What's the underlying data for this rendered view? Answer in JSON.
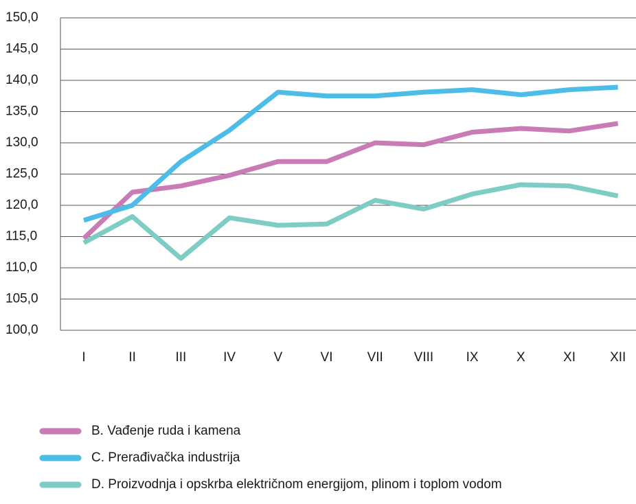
{
  "chart_data": {
    "type": "line",
    "categories": [
      "I",
      "II",
      "III",
      "IV",
      "V",
      "VI",
      "VII",
      "VIII",
      "IX",
      "X",
      "XI",
      "XII"
    ],
    "series": [
      {
        "name": "B. Vađenje ruda i kamena",
        "color": "#c97bb5",
        "values": [
          114.7,
          122.1,
          123.1,
          124.8,
          127.0,
          127.0,
          130.0,
          129.7,
          131.7,
          132.3,
          131.9,
          133.1
        ]
      },
      {
        "name": "C. Prerađivačka industrija",
        "color": "#4dbde8",
        "values": [
          117.6,
          120.0,
          127.0,
          132.0,
          138.1,
          137.5,
          137.5,
          138.1,
          138.5,
          137.7,
          138.5,
          138.9
        ]
      },
      {
        "name": "D. Proizvodnja i opskrba električnom energijom, plinom i toplom vodom",
        "color": "#7ecdc4",
        "values": [
          114.0,
          118.2,
          111.5,
          118.0,
          116.8,
          117.0,
          120.8,
          119.4,
          121.8,
          123.3,
          123.1,
          121.5
        ]
      }
    ],
    "ylim": [
      100,
      150
    ],
    "yticks": [
      {
        "value": 100,
        "label": "100,0"
      },
      {
        "value": 105,
        "label": "105,0"
      },
      {
        "value": 110,
        "label": "110,0"
      },
      {
        "value": 115,
        "label": "115,0"
      },
      {
        "value": 120,
        "label": "120,0"
      },
      {
        "value": 125,
        "label": "125,0"
      },
      {
        "value": 130,
        "label": "130,0"
      },
      {
        "value": 135,
        "label": "135,0"
      },
      {
        "value": 140,
        "label": "140,0"
      },
      {
        "value": 145,
        "label": "145,0"
      },
      {
        "value": 150,
        "label": "150,0"
      }
    ],
    "grid": true
  }
}
